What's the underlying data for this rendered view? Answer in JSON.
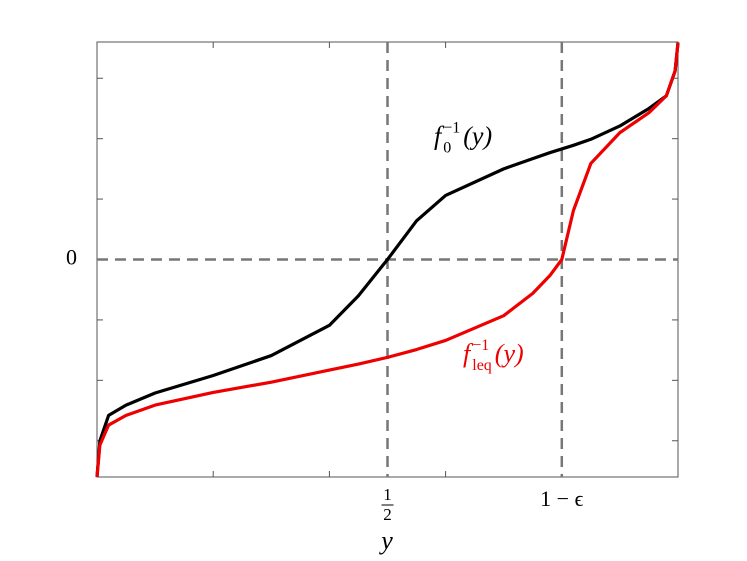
{
  "chart_data": {
    "type": "line",
    "x_label": "y",
    "x": [
      0,
      0.005,
      0.02,
      0.05,
      0.1,
      0.2,
      0.3,
      0.4,
      0.45,
      0.5,
      0.55,
      0.6,
      0.7,
      0.75,
      0.78,
      0.8,
      0.82,
      0.85,
      0.9,
      0.95,
      0.98,
      0.995,
      1
    ],
    "series": [
      {
        "color": "#000000",
        "values": [
          -3.6,
          -3.0,
          -2.58,
          -2.41,
          -2.21,
          -1.92,
          -1.59,
          -1.09,
          -0.6,
          0,
          0.64,
          1.06,
          1.5,
          1.67,
          1.77,
          1.83,
          1.89,
          1.99,
          2.21,
          2.5,
          2.71,
          3.12,
          3.59
        ]
      },
      {
        "color": "#ee0000",
        "values": [
          -3.6,
          -3.07,
          -2.74,
          -2.58,
          -2.41,
          -2.2,
          -2.03,
          -1.83,
          -1.73,
          -1.62,
          -1.49,
          -1.34,
          -0.93,
          -0.56,
          -0.26,
          0,
          0.81,
          1.59,
          2.1,
          2.43,
          2.71,
          3.12,
          3.59
        ]
      }
    ],
    "annotations": [
      {
        "base": "f",
        "sub": "0",
        "sup": "−1",
        "arg": "(y)",
        "color": "#000000",
        "x": 0.58,
        "y": 2.0
      },
      {
        "base": "f",
        "sub": "leq",
        "sup": "−1",
        "arg": "(y)",
        "color": "#ee0000",
        "x": 0.63,
        "y": -1.6
      }
    ],
    "xlim": [
      0,
      1
    ],
    "ylim": [
      -3.6,
      3.6
    ],
    "xticks": [
      {
        "value": 0.5,
        "label": "1/2"
      },
      {
        "value": 0.8,
        "label": "1 − ϵ"
      }
    ],
    "xminor": [
      0.2,
      0.4,
      0.6
    ],
    "yticks": [
      0
    ],
    "yminor": [
      -3,
      -2,
      -1,
      1,
      2,
      3
    ]
  }
}
